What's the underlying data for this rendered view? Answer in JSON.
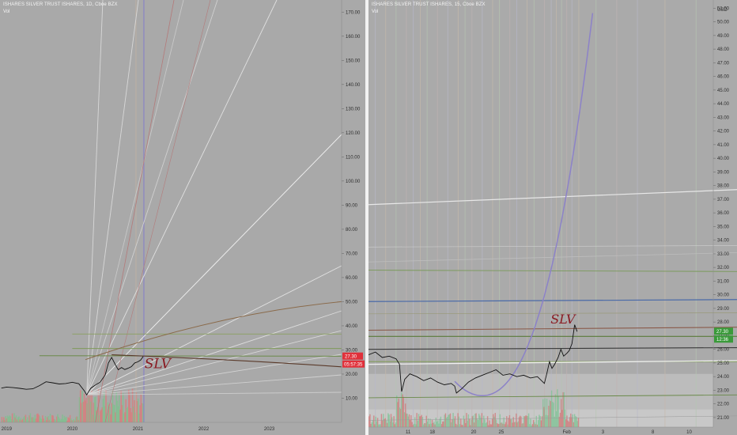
{
  "left": {
    "title": "ISHARES SILVER TRUST ISHARES, 1D, Cboe BZX",
    "vol_label": "Vol",
    "chart_data": {
      "type": "line",
      "title": "ISHARES SILVER TRUST ISHARES, 1D, Cboe BZX",
      "xlabel": "",
      "ylabel": "",
      "x_ticks": [
        "2019",
        "2020",
        "2021",
        "2022",
        "2023"
      ],
      "y_ticks": [
        "10.00",
        "20.00",
        "30.00",
        "40.00",
        "50.00",
        "60.00",
        "70.00",
        "80.00",
        "90.00",
        "100.00",
        "110.00",
        "120.00",
        "130.00",
        "140.00",
        "150.00",
        "160.00",
        "170.00"
      ],
      "ylim": [
        0,
        175
      ],
      "xlim": [
        2018.9,
        2024.1
      ],
      "series": [
        {
          "values": [
            [
              2018.92,
              14.2
            ],
            [
              2019.0,
              14.6
            ],
            [
              2019.1,
              14.4
            ],
            [
              2019.2,
              14.1
            ],
            [
              2019.3,
              13.7
            ],
            [
              2019.4,
              13.9
            ],
            [
              2019.5,
              15.2
            ],
            [
              2019.6,
              16.8
            ],
            [
              2019.7,
              16.4
            ],
            [
              2019.8,
              15.9
            ],
            [
              2019.9,
              16.1
            ],
            [
              2020.0,
              16.6
            ],
            [
              2020.1,
              16.0
            ],
            [
              2020.18,
              13.2
            ],
            [
              2020.22,
              11.4
            ],
            [
              2020.28,
              14.1
            ],
            [
              2020.35,
              15.4
            ],
            [
              2020.42,
              16.6
            ],
            [
              2020.5,
              19.5
            ],
            [
              2020.55,
              24.6
            ],
            [
              2020.6,
              26.9
            ],
            [
              2020.65,
              24.2
            ],
            [
              2020.7,
              21.8
            ],
            [
              2020.75,
              22.7
            ],
            [
              2020.8,
              21.9
            ],
            [
              2020.85,
              22.4
            ],
            [
              2020.9,
              23.1
            ],
            [
              2020.95,
              24.6
            ],
            [
              2021.0,
              25.1
            ],
            [
              2021.04,
              25.8
            ],
            [
              2021.08,
              27.3
            ]
          ]
        }
      ],
      "current_price": "27.30",
      "countdown": "05:57:35",
      "annotation": "SLV",
      "price_badge_color": "#e0303a"
    }
  },
  "right": {
    "title": "ISHARES SILVER TRUST ISHARES, 15, Cboe BZX",
    "vol_label": "Vol",
    "currency": "USD",
    "chart_data": {
      "type": "line",
      "title": "ISHARES SILVER TRUST ISHARES, 15, Cboe BZX",
      "xlabel": "",
      "ylabel": "",
      "x_ticks": [
        "11",
        "18",
        "20",
        "25",
        "Feb",
        "3",
        "8",
        "10"
      ],
      "y_ticks": [
        "21.00",
        "22.00",
        "23.00",
        "24.00",
        "25.00",
        "26.00",
        "27.00",
        "28.00",
        "29.00",
        "30.00",
        "31.00",
        "32.00",
        "33.00",
        "34.00",
        "35.00",
        "36.00",
        "37.00",
        "38.00",
        "39.00",
        "40.00",
        "41.00",
        "42.00",
        "43.00",
        "44.00",
        "45.00",
        "46.00",
        "47.00",
        "48.00",
        "49.00",
        "50.00",
        "51.00"
      ],
      "ylim": [
        20.3,
        51.6
      ],
      "xlim": [
        0,
        100
      ],
      "series": [
        {
          "values": [
            [
              0,
              25.6
            ],
            [
              2,
              25.8
            ],
            [
              4,
              25.4
            ],
            [
              6,
              25.5
            ],
            [
              8,
              25.3
            ],
            [
              9,
              24.9
            ],
            [
              9.6,
              22.9
            ],
            [
              10.5,
              23.8
            ],
            [
              12,
              24.2
            ],
            [
              14,
              24.0
            ],
            [
              16,
              23.7
            ],
            [
              18,
              23.9
            ],
            [
              20,
              23.6
            ],
            [
              22,
              23.4
            ],
            [
              24,
              23.5
            ],
            [
              25,
              23.3
            ],
            [
              25.5,
              22.8
            ],
            [
              27,
              23.1
            ],
            [
              29,
              23.6
            ],
            [
              31,
              23.9
            ],
            [
              33,
              24.1
            ],
            [
              35,
              24.3
            ],
            [
              37,
              24.5
            ],
            [
              39,
              24.1
            ],
            [
              41,
              24.2
            ],
            [
              43,
              24.0
            ],
            [
              45,
              24.1
            ],
            [
              47,
              23.9
            ],
            [
              49,
              24.0
            ],
            [
              51,
              23.5
            ],
            [
              51.8,
              24.3
            ],
            [
              52.5,
              25.1
            ],
            [
              53.2,
              24.6
            ],
            [
              54,
              24.9
            ],
            [
              55,
              25.4
            ],
            [
              55.8,
              26.0
            ],
            [
              56.6,
              25.5
            ],
            [
              57.5,
              25.7
            ],
            [
              58.2,
              25.9
            ],
            [
              59,
              26.4
            ],
            [
              59.8,
              27.8
            ],
            [
              60.5,
              27.3
            ]
          ]
        }
      ],
      "current_price": "27.30",
      "countdown": "12:36",
      "annotation": "SLV",
      "price_badge_color": "#3a9a3a"
    }
  }
}
